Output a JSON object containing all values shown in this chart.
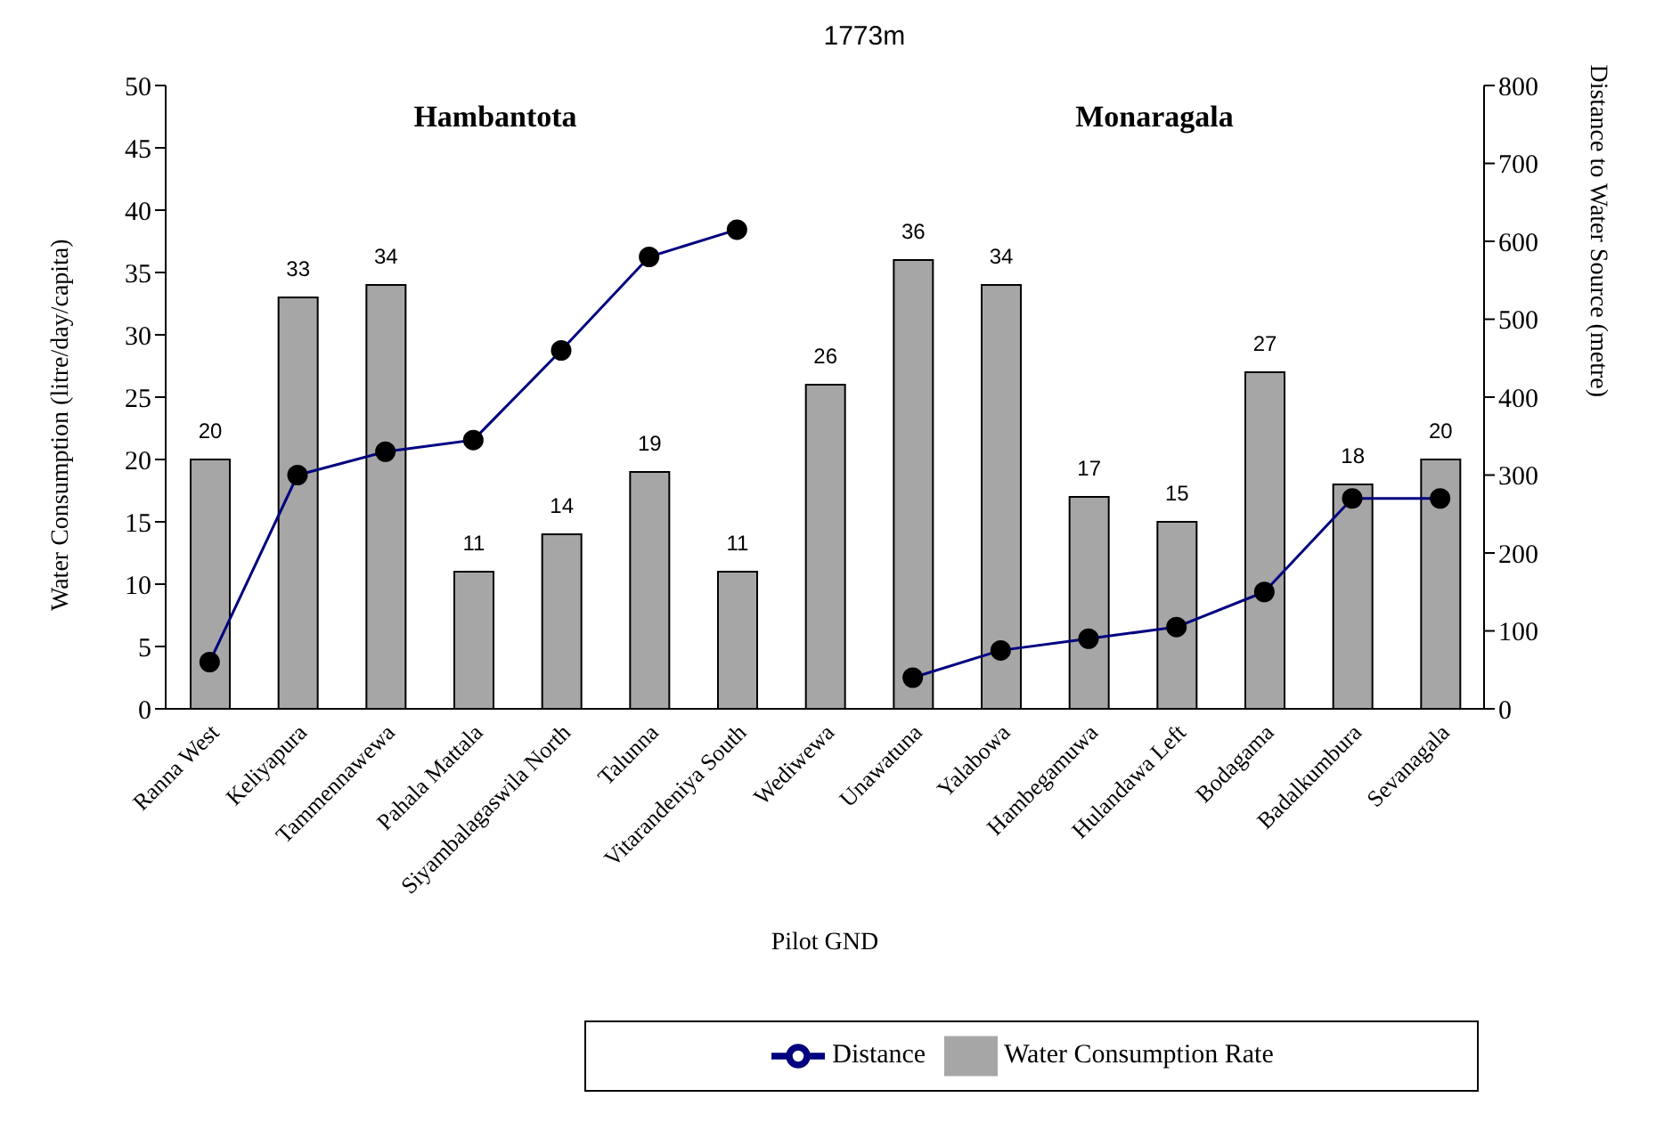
{
  "chart_data": {
    "type": "bar",
    "xlabel": "Pilot GND",
    "ylabel": "Water Consumption (litre/day/capita)",
    "y2label": "Distance to Water Source (metre)",
    "categories": [
      "Ranna West",
      "Keliyapura",
      "Tammennawewa",
      "Pahala Mattala",
      "Siyambalagaswila North",
      "Talunna",
      "Vitarandeniya South",
      "Wediwewa",
      "Unawatuna",
      "Yalabowa",
      "Hambegamuwa",
      "Hulandawa Left",
      "Bodagama",
      "Badalkumbura",
      "Sevanagala"
    ],
    "series": [
      {
        "name": "Water Consumption Rate",
        "color": "#a6a6a6",
        "values": [
          20,
          33,
          34,
          11,
          14,
          19,
          11,
          26,
          36,
          34,
          17,
          15,
          27,
          18,
          20
        ],
        "value_labels": [
          "20",
          "33",
          "34",
          "11",
          "14",
          "19",
          "11",
          "26",
          "36",
          "34",
          "17",
          "15",
          "27",
          "18",
          "20"
        ]
      },
      {
        "name": "Distance",
        "type": "line",
        "axis": "y2",
        "color": "#000080",
        "marker": "circle",
        "values": [
          60,
          300,
          330,
          345,
          460,
          580,
          615,
          null,
          40,
          75,
          90,
          105,
          150,
          270,
          270
        ]
      }
    ],
    "ylim": [
      0,
      50
    ],
    "yticks": [
      0,
      5,
      10,
      15,
      20,
      25,
      30,
      35,
      40,
      45,
      50
    ],
    "y2lim": [
      0,
      800
    ],
    "y2ticks": [
      0,
      100,
      200,
      300,
      400,
      500,
      600,
      700,
      800
    ],
    "grid": false,
    "legend": "bottom",
    "annotations": [
      "Hambantota",
      "Monaragala",
      "1773m"
    ]
  }
}
